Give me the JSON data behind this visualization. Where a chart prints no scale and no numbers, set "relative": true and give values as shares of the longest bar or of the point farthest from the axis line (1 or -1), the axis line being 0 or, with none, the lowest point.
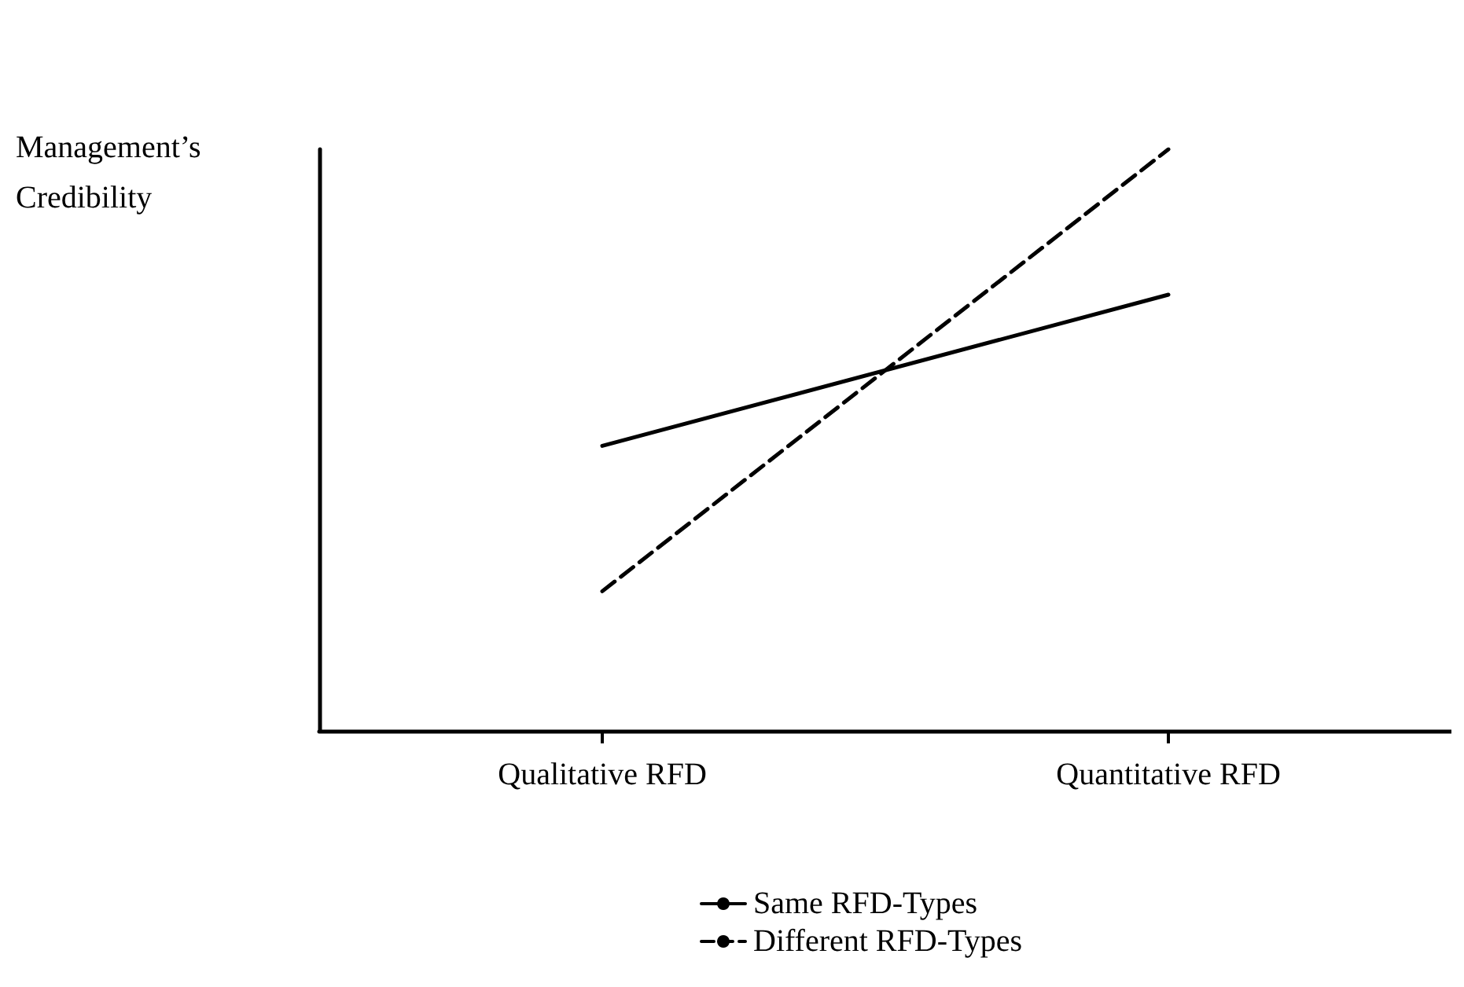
{
  "chart_data": {
    "type": "line",
    "relative": true,
    "ylabel": "Management’s Credibility",
    "categories": [
      "Qualitative RFD",
      "Quantitative RFD"
    ],
    "marker": "none",
    "legend": "bottom",
    "grid": false,
    "series": [
      {
        "name": "Same RFD-Types",
        "color": "#000000",
        "line_style": "solid",
        "values": [
          0.49,
          0.75
        ]
      },
      {
        "name": "Different RFD-Types",
        "color": "#000000",
        "line_style": "dashed",
        "values": [
          0.24,
          1
        ]
      }
    ]
  }
}
